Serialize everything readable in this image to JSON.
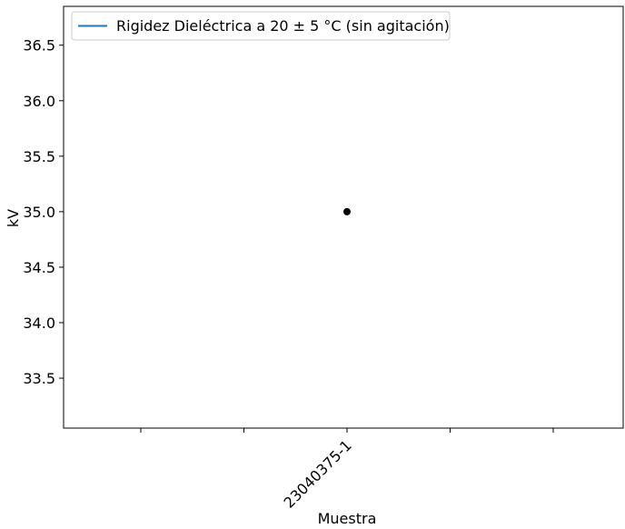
{
  "chart_data": {
    "type": "scatter",
    "categories": [
      "",
      "",
      "23040375-1",
      "",
      ""
    ],
    "series": [
      {
        "name": "Rigidez Dieléctrica a 20 ± 5 °C (sin agitación)",
        "values": [
          null,
          null,
          35.0,
          null,
          null
        ],
        "line_color": "#1f77b4",
        "marker_color": "#000000"
      }
    ],
    "xlabel": "Muestra",
    "ylabel": "kV",
    "ylim": [
      33.05,
      36.85
    ],
    "yticks": [
      33.5,
      34.0,
      34.5,
      35.0,
      35.5,
      36.0,
      36.5
    ],
    "ytick_labels": [
      "33.5",
      "34.0",
      "34.5",
      "35.0",
      "35.5",
      "36.0",
      "36.5"
    ],
    "grid": false,
    "legend_position": "top-left"
  }
}
